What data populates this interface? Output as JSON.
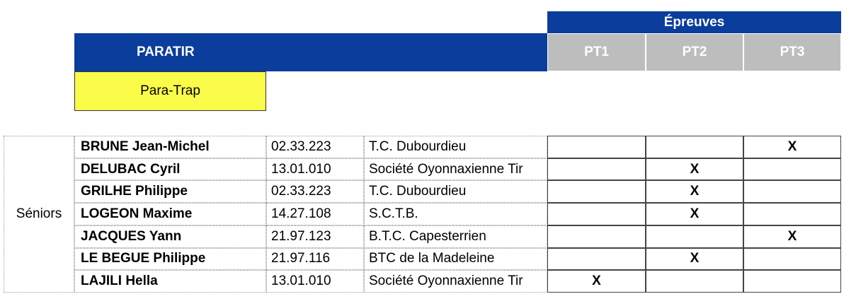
{
  "header": {
    "group": "Épreuves",
    "title": "PARATIR",
    "events": [
      "PT1",
      "PT2",
      "PT3"
    ],
    "discipline": "Para-Trap"
  },
  "table": {
    "category": "Séniors",
    "rows": [
      [
        "BRUNE Jean-Michel",
        "02.33.223",
        "T.C. Dubourdieu",
        null,
        null,
        "X"
      ],
      [
        "DELUBAC Cyril",
        "13.01.010",
        "Société Oyonnaxienne Tir",
        null,
        "X",
        null
      ],
      [
        "GRILHE Philippe",
        "02.33.223",
        "T.C. Dubourdieu",
        null,
        "X",
        null
      ],
      [
        "LOGEON Maxime",
        "14.27.108",
        "S.C.T.B.",
        null,
        "X",
        null
      ],
      [
        "JACQUES Yann",
        "21.97.123",
        "B.T.C. Capesterrien",
        null,
        null,
        "X"
      ],
      [
        "LE BEGUE Philippe",
        "21.97.116",
        "BTC de la Madeleine",
        null,
        "X",
        null
      ],
      [
        "LAJILI Hella",
        "13.01.010",
        "Société Oyonnaxienne Tir",
        "X",
        null,
        null
      ]
    ]
  }
}
